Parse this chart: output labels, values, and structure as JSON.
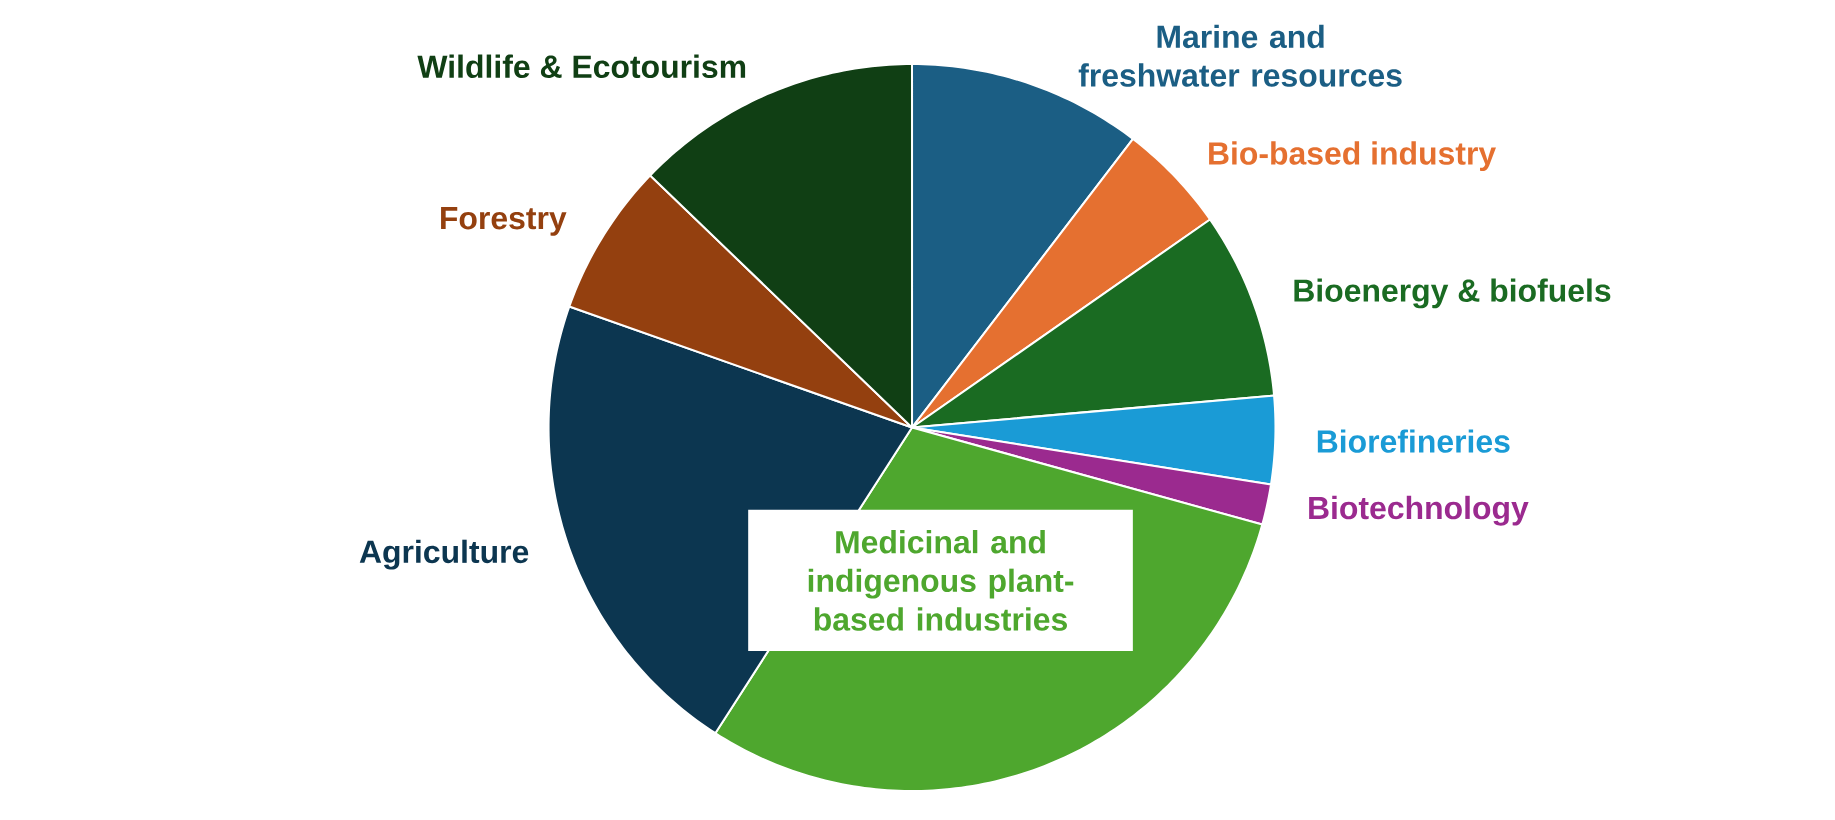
{
  "chart_data": {
    "type": "pie",
    "categories": [
      "Marine and freshwater resources",
      "Bio-based industry",
      "Bioenergy & biofuels",
      "Biorefineries",
      "Biotechnology",
      "Medicinal and indigenous plant-based industries",
      "Agriculture",
      "Forestry",
      "Wildlife & Ecotourism"
    ],
    "values": [
      10.4,
      4.9,
      8.3,
      3.9,
      1.8,
      29.8,
      21.3,
      6.8,
      12.8
    ],
    "colors": [
      "#1b5e84",
      "#e57030",
      "#1a6b22",
      "#1a9bd6",
      "#9b2a8f",
      "#4ea72e",
      "#0c3650",
      "#94400f",
      "#103f14"
    ]
  }
}
